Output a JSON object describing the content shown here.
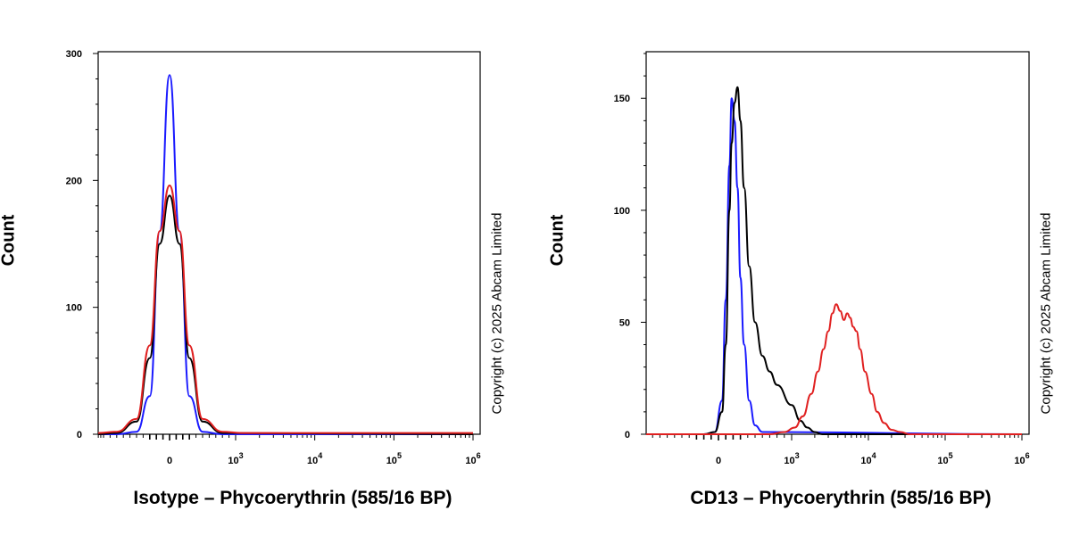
{
  "chart_data": [
    {
      "type": "line",
      "title": "",
      "xlabel": "Isotype – Phycoerythrin (585/16 BP)",
      "ylabel": "Count",
      "xscale": "biexponential",
      "xticks": [
        {
          "value": 0,
          "base": "0",
          "exp": ""
        },
        {
          "value": 1000,
          "base": "10",
          "exp": "3"
        },
        {
          "value": 10000,
          "base": "10",
          "exp": "4"
        },
        {
          "value": 100000,
          "base": "10",
          "exp": "5"
        },
        {
          "value": 1000000,
          "base": "10",
          "exp": "6"
        }
      ],
      "yticks": [
        0,
        100,
        200,
        300
      ],
      "ylim": [
        0,
        300
      ],
      "xlim": [
        -2500,
        1000000
      ],
      "grid": false,
      "series": [
        {
          "color": "#1a1aff",
          "x": [
            -2500,
            -1200,
            -800,
            -500,
            -300,
            -150,
            0,
            150,
            300,
            500,
            800,
            1000000
          ],
          "y": [
            0,
            0,
            0,
            2,
            30,
            160,
            283,
            160,
            30,
            2,
            0,
            0
          ]
        },
        {
          "color": "#000000",
          "x": [
            -2500,
            -1200,
            -800,
            -500,
            -300,
            -150,
            0,
            150,
            300,
            500,
            800,
            1000000
          ],
          "y": [
            0,
            0,
            1,
            10,
            60,
            150,
            188,
            150,
            60,
            10,
            1,
            0
          ]
        },
        {
          "color": "#e02020",
          "x": [
            -2500,
            -1500,
            -1200,
            -800,
            -500,
            -300,
            -150,
            0,
            150,
            300,
            500,
            800,
            1200,
            1000000
          ],
          "y": [
            4,
            0,
            1,
            2,
            12,
            70,
            160,
            196,
            160,
            70,
            12,
            2,
            1,
            1
          ]
        }
      ]
    },
    {
      "type": "line",
      "title": "",
      "xlabel": "CD13 – Phycoerythrin (585/16 BP)",
      "ylabel": "Count",
      "xscale": "biexponential",
      "xticks": [
        {
          "value": 0,
          "base": "0",
          "exp": ""
        },
        {
          "value": 1000,
          "base": "10",
          "exp": "3"
        },
        {
          "value": 10000,
          "base": "10",
          "exp": "4"
        },
        {
          "value": 100000,
          "base": "10",
          "exp": "5"
        },
        {
          "value": 1000000,
          "base": "10",
          "exp": "6"
        }
      ],
      "yticks": [
        0,
        50,
        100,
        150
      ],
      "ylim": [
        0,
        170
      ],
      "xlim": [
        -2500,
        1000000
      ],
      "grid": false,
      "series": [
        {
          "color": "#1a1aff",
          "x": [
            -2500,
            -200,
            -50,
            50,
            100,
            150,
            180,
            220,
            260,
            300,
            350,
            420,
            500,
            600,
            1000000
          ],
          "y": [
            0,
            0,
            1,
            15,
            60,
            120,
            150,
            140,
            110,
            70,
            40,
            15,
            4,
            1,
            0
          ]
        },
        {
          "color": "#000000",
          "x": [
            -2500,
            -200,
            -50,
            50,
            100,
            150,
            180,
            220,
            260,
            300,
            350,
            420,
            500,
            600,
            700,
            800,
            1000,
            1300,
            1600,
            2000,
            2500,
            1000000
          ],
          "y": [
            0,
            0,
            1,
            10,
            40,
            100,
            130,
            148,
            155,
            140,
            110,
            75,
            50,
            35,
            28,
            22,
            13,
            6,
            3,
            1,
            0,
            0
          ]
        },
        {
          "color": "#e02020",
          "x": [
            -2500,
            700,
            900,
            1100,
            1400,
            1800,
            2200,
            2600,
            3000,
            3400,
            3800,
            4300,
            4800,
            5300,
            5800,
            6300,
            7000,
            7800,
            9000,
            11000,
            13000,
            16000,
            20000,
            26000,
            35000,
            1000000
          ],
          "y": [
            0,
            0,
            1,
            3,
            8,
            18,
            28,
            38,
            46,
            54,
            58,
            55,
            51,
            54,
            52,
            48,
            46,
            38,
            28,
            18,
            10,
            5,
            2,
            1,
            0,
            0
          ]
        }
      ]
    }
  ],
  "copyright": "Copyright (c) 2025 Abcam Limited"
}
